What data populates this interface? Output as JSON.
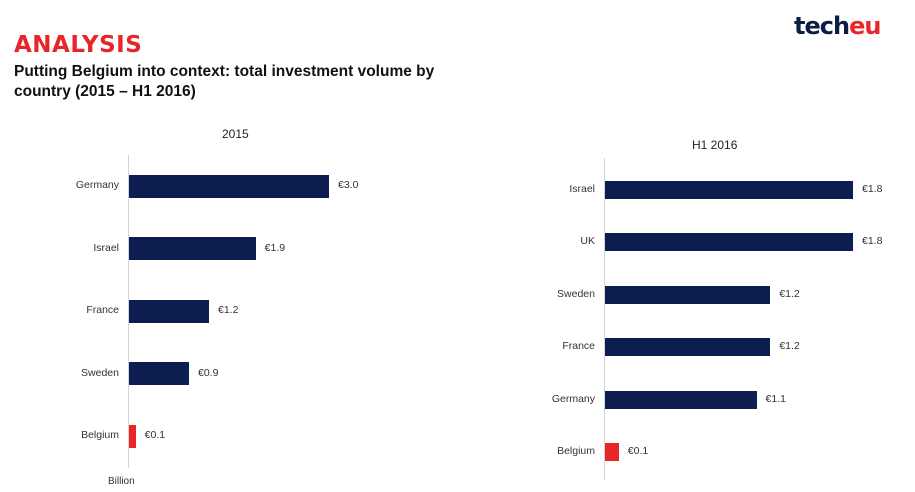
{
  "header": {
    "tag": "ANALYSIS",
    "subtitle": "Putting Belgium into context: total investment volume by country (2015 – H1 2016)",
    "logo_main": "tech",
    "logo_accent": "eu"
  },
  "colors": {
    "bar": "#0c1e4f",
    "highlight": "#e8262a"
  },
  "chart_data": [
    {
      "type": "bar",
      "orientation": "horizontal",
      "title": "2015",
      "categories": [
        "Germany",
        "Israel",
        "France",
        "Sweden",
        "Belgium"
      ],
      "values": [
        3.0,
        1.9,
        1.2,
        0.9,
        0.1
      ],
      "value_labels": [
        "€3.0",
        "€1.9",
        "€1.2",
        "€0.9",
        "€0.1"
      ],
      "highlight": "Belgium",
      "unit": "Billion",
      "xlim": [
        0,
        3.0
      ]
    },
    {
      "type": "bar",
      "orientation": "horizontal",
      "title": "H1 2016",
      "categories": [
        "Israel",
        "UK",
        "Sweden",
        "France",
        "Germany",
        "Belgium"
      ],
      "values": [
        1.8,
        1.8,
        1.2,
        1.2,
        1.1,
        0.1
      ],
      "value_labels": [
        "€1.8",
        "€1.8",
        "€1.2",
        "€1.2",
        "€1.1",
        "€0.1"
      ],
      "highlight": "Belgium",
      "xlim": [
        0,
        1.8
      ]
    }
  ]
}
